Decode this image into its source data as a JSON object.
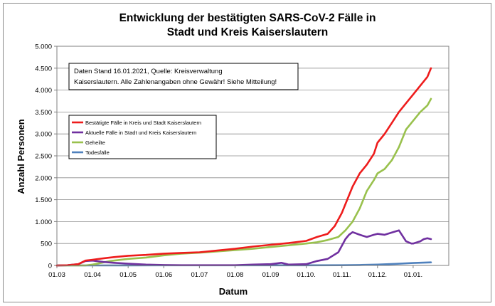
{
  "chart_data": {
    "type": "line",
    "title_line1": "Entwicklung der bestätigten SARS-CoV-2 Fälle in",
    "title_line2": "Stadt und Kreis Kaiserslautern",
    "xlabel": "Datum",
    "ylabel": "Anzahl Personen",
    "x_tick_labels": [
      "01.03",
      "01.04",
      "01.05",
      "01.06",
      "01.07",
      "01.08",
      "01.09",
      "01.10.",
      "01.11.",
      "01.12.",
      "01.01."
    ],
    "y_tick_labels": [
      "0",
      "500",
      "1.000",
      "1.500",
      "2.000",
      "2.500",
      "3.000",
      "3.500",
      "4.000",
      "4.500",
      "5.000"
    ],
    "y_ticks": [
      0,
      500,
      1000,
      1500,
      2000,
      2500,
      3000,
      3500,
      4000,
      4500,
      5000
    ],
    "ylim": [
      0,
      5000
    ],
    "x_month_domain": [
      0,
      11
    ],
    "grid": "horizontal",
    "legend_position": "top-left",
    "note_line1": "Daten Stand 16.01.2021, Quelle: Kreisverwaltung",
    "note_line2": "Kaiserslautern. Alle Zahlenangaben ohne Gewähr! Siehe Mitteilung!",
    "series": [
      {
        "name": "Bestätigte Fälle in Kreis und Stadt Kaiserslautern",
        "color": "#ee1c1c",
        "x": [
          0,
          0.3,
          0.6,
          0.8,
          1.0,
          1.3,
          1.6,
          2.0,
          2.5,
          3.0,
          3.5,
          4.0,
          4.5,
          5.0,
          5.5,
          6.0,
          6.5,
          7.0,
          7.3,
          7.6,
          7.8,
          8.0,
          8.15,
          8.3,
          8.5,
          8.7,
          8.9,
          9.0,
          9.2,
          9.4,
          9.6,
          9.8,
          10.0,
          10.2,
          10.4,
          10.5
        ],
        "y": [
          0,
          5,
          30,
          110,
          130,
          160,
          190,
          220,
          240,
          270,
          285,
          300,
          340,
          380,
          430,
          470,
          510,
          560,
          650,
          720,
          900,
          1200,
          1500,
          1800,
          2100,
          2300,
          2550,
          2800,
          3000,
          3250,
          3500,
          3700,
          3900,
          4100,
          4300,
          4500
        ]
      },
      {
        "name": "Aktuelle Fälle in Stadt und Kreis Kaiserslautern",
        "color": "#7030a0",
        "x": [
          0,
          0.3,
          0.6,
          0.8,
          1.0,
          1.3,
          1.6,
          2.0,
          2.5,
          3.0,
          3.5,
          4.0,
          5.0,
          5.5,
          6.0,
          6.3,
          6.5,
          7.0,
          7.3,
          7.6,
          7.9,
          8.0,
          8.1,
          8.2,
          8.3,
          8.5,
          8.7,
          8.9,
          9.0,
          9.2,
          9.4,
          9.6,
          9.8,
          9.95,
          10.0,
          10.2,
          10.3,
          10.4,
          10.5
        ],
        "y": [
          0,
          5,
          30,
          100,
          110,
          80,
          60,
          40,
          20,
          10,
          5,
          5,
          5,
          20,
          30,
          60,
          20,
          30,
          100,
          150,
          300,
          450,
          600,
          700,
          760,
          700,
          650,
          700,
          720,
          700,
          750,
          800,
          550,
          500,
          500,
          550,
          600,
          620,
          600
        ]
      },
      {
        "name": "Geheilte",
        "color": "#99c14d",
        "x": [
          0,
          0.5,
          0.8,
          1.0,
          1.5,
          2.0,
          2.5,
          3.0,
          3.5,
          4.0,
          4.5,
          5.0,
          5.5,
          6.0,
          6.5,
          7.0,
          7.3,
          7.6,
          7.9,
          8.1,
          8.3,
          8.5,
          8.7,
          8.9,
          9.0,
          9.2,
          9.4,
          9.6,
          9.8,
          10.0,
          10.2,
          10.4,
          10.5
        ],
        "y": [
          0,
          0,
          0,
          20,
          100,
          150,
          180,
          230,
          270,
          290,
          320,
          350,
          380,
          420,
          460,
          500,
          530,
          580,
          650,
          800,
          1000,
          1300,
          1700,
          1950,
          2100,
          2200,
          2400,
          2700,
          3100,
          3300,
          3500,
          3650,
          3800
        ]
      },
      {
        "name": "Todesfälle",
        "color": "#4f81bd",
        "x": [
          0,
          1.0,
          2.0,
          3.0,
          4.0,
          5.0,
          6.0,
          7.0,
          8.0,
          8.5,
          9.0,
          9.5,
          10.0,
          10.5
        ],
        "y": [
          0,
          0,
          2,
          3,
          3,
          3,
          3,
          3,
          5,
          10,
          20,
          35,
          55,
          70
        ]
      }
    ]
  }
}
